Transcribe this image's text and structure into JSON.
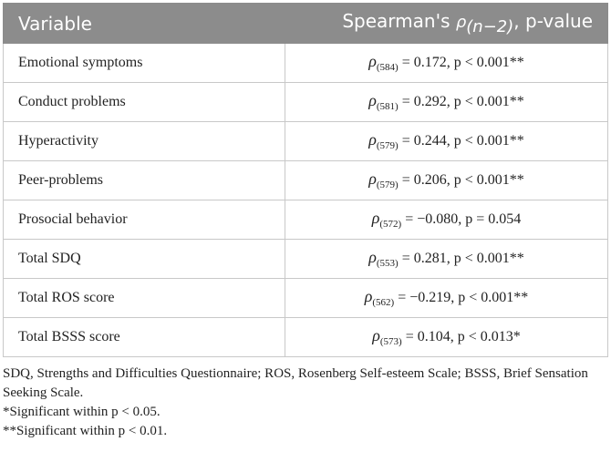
{
  "table": {
    "header": {
      "variable": "Variable",
      "stat_prefix": "Spearman's",
      "rho": "ρ",
      "sub": "(n−2)",
      "stat_suffix": ", p-value"
    },
    "rows": [
      {
        "variable": "Emotional symptoms",
        "rho": "ρ",
        "sub": "(584)",
        "stat": "= 0.172, p < 0.001**"
      },
      {
        "variable": "Conduct problems",
        "rho": "ρ",
        "sub": "(581)",
        "stat": "= 0.292, p < 0.001**"
      },
      {
        "variable": "Hyperactivity",
        "rho": "ρ",
        "sub": "(579)",
        "stat": "= 0.244, p < 0.001**"
      },
      {
        "variable": "Peer-problems",
        "rho": "ρ",
        "sub": "(579)",
        "stat": "= 0.206, p < 0.001**"
      },
      {
        "variable": "Prosocial behavior",
        "rho": "ρ",
        "sub": "(572)",
        "stat": "= −0.080, p = 0.054"
      },
      {
        "variable": "Total SDQ",
        "rho": "ρ",
        "sub": "(553)",
        "stat": "= 0.281, p < 0.001**"
      },
      {
        "variable": "Total ROS score",
        "rho": "ρ",
        "sub": "(562)",
        "stat": "= −0.219, p < 0.001**"
      },
      {
        "variable": "Total BSSS score",
        "rho": "ρ",
        "sub": "(573)",
        "stat": "= 0.104, p < 0.013*"
      }
    ]
  },
  "footnotes": [
    "SDQ, Strengths and Difficulties Questionnaire; ROS, Rosenberg Self-esteem Scale; BSSS, Brief Sensation Seeking Scale.",
    "*Significant within p < 0.05.",
    "**Significant within p < 0.01."
  ]
}
